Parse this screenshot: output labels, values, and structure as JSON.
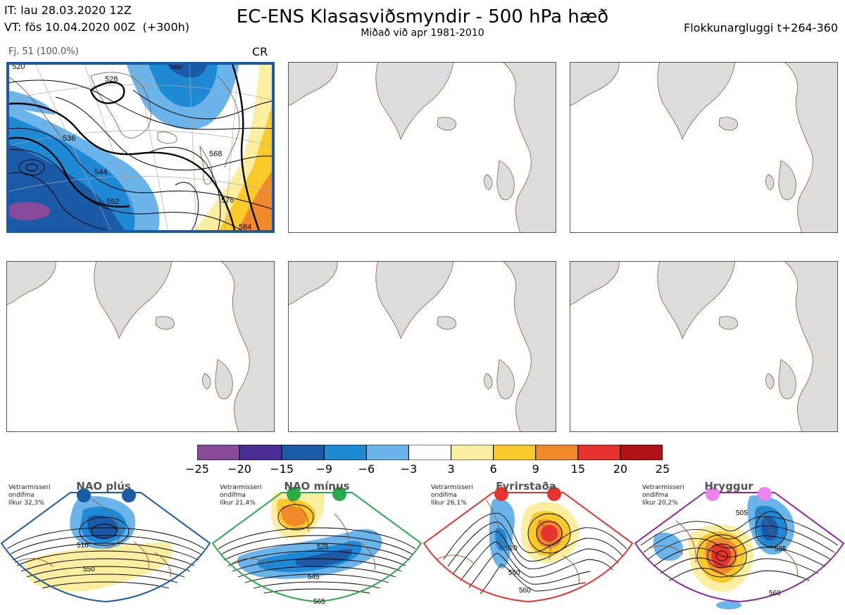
{
  "header": {
    "initial_time": "IT: lau 28.03.2020 12Z",
    "valid_time": "VT: fös 10.04.2020 00Z  (+300h)",
    "title": "EC-ENS Klasasviðsmyndir - 500 hPa hæð",
    "subtitle": "Miðað við apr 1981-2010",
    "window": "Flokkunargluggi t+264-360"
  },
  "cluster": {
    "label": "Fj. 51 (100.0%)",
    "code": "CR",
    "contour_labels": [
      "520",
      "528",
      "536",
      "544",
      "552",
      "560",
      "568",
      "576",
      "584"
    ]
  },
  "panels": [
    {
      "id": "p1",
      "selected": true
    },
    {
      "id": "p2",
      "selected": false
    },
    {
      "id": "p3",
      "selected": false
    },
    {
      "id": "p4",
      "selected": false
    },
    {
      "id": "p5",
      "selected": false
    },
    {
      "id": "p6",
      "selected": false
    }
  ],
  "colorbar": {
    "labels": [
      "−25",
      "−20",
      "−15",
      "−9",
      "−6",
      "−3",
      "3",
      "6",
      "9",
      "15",
      "20",
      "25"
    ],
    "colors": [
      "#8a4a9c",
      "#4a2d96",
      "#1a5aa6",
      "#1e8ad6",
      "#6ab4ea",
      "#ffffff",
      "#fbeea0",
      "#fac92a",
      "#f08a2c",
      "#e8322e",
      "#b01218"
    ]
  },
  "regimes": [
    {
      "name": "NAO plús",
      "stats": [
        "Vetrarmisseri",
        "ondifma",
        "líkur 32,3%"
      ],
      "color": "#1a5aa6",
      "labels": [
        "510",
        "550"
      ]
    },
    {
      "name": "NAO mínus",
      "stats": [
        "Vetrarmisseri",
        "ondifma",
        "líkur 21,4%"
      ],
      "color": "#2aaa4a",
      "labels": [
        "525",
        "545",
        "565"
      ]
    },
    {
      "name": "Fyrirstaða",
      "stats": [
        "Vetrarmisseri",
        "ondifma",
        "líkur 26,1%"
      ],
      "color": "#e8322e",
      "labels": [
        "520",
        "550",
        "560"
      ]
    },
    {
      "name": "Hryggur",
      "stats": [
        "Vetrarmisseri",
        "ondifma",
        "líkur 20,2%"
      ],
      "color": "#8a2a9a",
      "labels": [
        "505",
        "535",
        "560"
      ]
    }
  ]
}
